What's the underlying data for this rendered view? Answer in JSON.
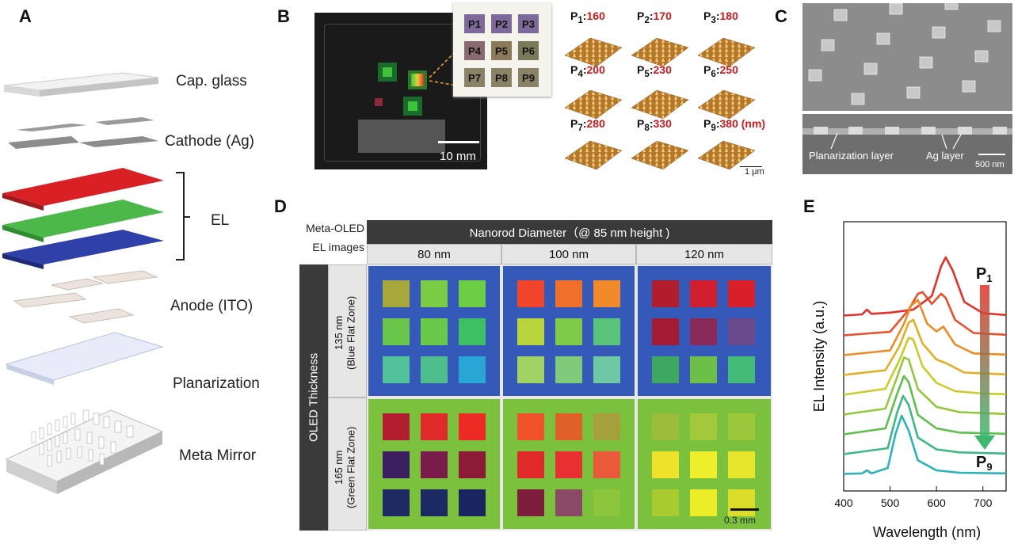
{
  "panel_labels": {
    "a": "A",
    "b": "B",
    "c": "C",
    "d": "D",
    "e": "E"
  },
  "panel_a": {
    "layers": [
      "Cap. glass",
      "Cathode (Ag)",
      "EL",
      "Anode (ITO)",
      "Planarization",
      "Meta Mirror"
    ]
  },
  "panel_b": {
    "scale_bar": "10 mm",
    "pixels": [
      "P1",
      "P2",
      "P3",
      "P4",
      "P5",
      "P6",
      "P7",
      "P8",
      "P9"
    ],
    "afm": [
      {
        "p": "P",
        "sub": "1",
        "val": "160"
      },
      {
        "p": "P",
        "sub": "2",
        "val": "170"
      },
      {
        "p": "P",
        "sub": "3",
        "val": "180"
      },
      {
        "p": "P",
        "sub": "4",
        "val": "200"
      },
      {
        "p": "P",
        "sub": "5",
        "val": "230"
      },
      {
        "p": "P",
        "sub": "6",
        "val": "250"
      },
      {
        "p": "P",
        "sub": "7",
        "val": "280"
      },
      {
        "p": "P",
        "sub": "8",
        "val": "330"
      },
      {
        "p": "P",
        "sub": "9",
        "val": "380 (nm)"
      }
    ],
    "afm_scale": "1 μm"
  },
  "panel_c": {
    "planarization": "Planarization layer",
    "ag": "Ag layer",
    "scale": "500 nm"
  },
  "panel_d": {
    "corner_top": "Meta-OLED",
    "corner_bottom": "EL images",
    "header": "Nanorod Diameter（@ 85 nm height )",
    "cols": [
      "80 nm",
      "100 nm",
      "120 nm"
    ],
    "side": "OLED  Thickness",
    "rows": [
      {
        "thick": "135 nm",
        "zone": "(Blue Flat Zone)"
      },
      {
        "thick": "165 nm",
        "zone": "(Green Flat Zone)"
      }
    ],
    "scale": "0.3 mm",
    "colors": {
      "blue_bg": "#3459b8",
      "green_bg": "#7cc13e",
      "grid": [
        [
          [
            "#a6a83c",
            "#7ccb45",
            "#6dcd45",
            "#6ac64a",
            "#69c948",
            "#3fbf63",
            "#52c29a",
            "#4fbe8d",
            "#2aa6d4"
          ],
          [
            "#f0452a",
            "#f0702a",
            "#f08a2a",
            "#b8d43c",
            "#7dcb46",
            "#58c47a",
            "#a0d264",
            "#7fcb7a",
            "#6fc8a4"
          ],
          [
            "#b01e2e",
            "#d21f30",
            "#d81f2a",
            "#a41c34",
            "#8a2a58",
            "#6a4a8a",
            "#3ea860",
            "#6cc048",
            "#44bc78"
          ]
        ],
        [
          [
            "#b21e30",
            "#e02a2a",
            "#ee2a24",
            "#3a1e60",
            "#7a1c4a",
            "#8c1c36",
            "#1e2a62",
            "#1c2a64",
            "#1a2660"
          ],
          [
            "#f0522a",
            "#e0602a",
            "#a6a03c",
            "#e02a2a",
            "#e83030",
            "#ea5a3a",
            "#7c1e3c",
            "#8a4a66",
            "#8cc63c"
          ],
          [
            "#9cbc3c",
            "#a2c83c",
            "#9cc83c",
            "#eee22a",
            "#eeee2c",
            "#e8e62c",
            "#a8cc30",
            "#ecec28",
            "#dcdc2a"
          ]
        ]
      ]
    }
  },
  "chart_data": {
    "type": "line",
    "xlabel": "Wavelength (nm)",
    "ylabel": "EL Intensity (a.u.)",
    "xlim": [
      400,
      750
    ],
    "xticks": [
      400,
      500,
      600,
      700
    ],
    "top_label": "P1",
    "bottom_label": "P9",
    "series": [
      {
        "color": "#e4312b",
        "peak": 620,
        "x": [
          400,
          440,
          450,
          460,
          500,
          550,
          590,
          610,
          620,
          635,
          660,
          700,
          750
        ],
        "y": [
          0.02,
          0.04,
          0.12,
          0.05,
          0.07,
          0.12,
          0.35,
          0.85,
          1.0,
          0.78,
          0.25,
          0.06,
          0.03
        ]
      },
      {
        "color": "#ea4e2b",
        "peak": 570,
        "x": [
          400,
          500,
          540,
          560,
          570,
          590,
          610,
          620,
          640,
          680,
          750
        ],
        "y": [
          0.02,
          0.08,
          0.45,
          0.72,
          0.75,
          0.55,
          0.72,
          0.65,
          0.28,
          0.06,
          0.03
        ]
      },
      {
        "color": "#ef8a24",
        "peak": 560,
        "x": [
          400,
          500,
          530,
          545,
          560,
          580,
          600,
          615,
          640,
          680,
          750
        ],
        "y": [
          0.02,
          0.1,
          0.55,
          0.85,
          0.95,
          0.55,
          0.42,
          0.5,
          0.2,
          0.05,
          0.03
        ]
      },
      {
        "color": "#e5ad22",
        "peak": 550,
        "x": [
          400,
          490,
          520,
          540,
          550,
          570,
          600,
          620,
          660,
          750
        ],
        "y": [
          0.02,
          0.1,
          0.5,
          0.9,
          0.95,
          0.55,
          0.28,
          0.22,
          0.06,
          0.03
        ]
      },
      {
        "color": "#c9cc2a",
        "peak": 545,
        "x": [
          400,
          490,
          520,
          540,
          550,
          570,
          600,
          640,
          700,
          750
        ],
        "y": [
          0.02,
          0.12,
          0.6,
          0.98,
          0.95,
          0.5,
          0.22,
          0.08,
          0.04,
          0.03
        ]
      },
      {
        "color": "#92c83a",
        "peak": 540,
        "x": [
          400,
          490,
          515,
          530,
          540,
          560,
          600,
          650,
          750
        ],
        "y": [
          0.02,
          0.12,
          0.65,
          0.98,
          0.95,
          0.45,
          0.15,
          0.06,
          0.03
        ]
      },
      {
        "color": "#5fbf4c",
        "peak": 535,
        "x": [
          400,
          490,
          515,
          530,
          540,
          560,
          600,
          650,
          750
        ],
        "y": [
          0.02,
          0.12,
          0.7,
          1.0,
          0.9,
          0.35,
          0.12,
          0.05,
          0.03
        ]
      },
      {
        "color": "#3eb884",
        "peak": 530,
        "x": [
          400,
          495,
          515,
          528,
          540,
          560,
          600,
          650,
          750
        ],
        "y": [
          0.02,
          0.12,
          0.72,
          1.0,
          0.85,
          0.3,
          0.1,
          0.05,
          0.03
        ]
      },
      {
        "color": "#2ab4b8",
        "peak": 525,
        "x": [
          400,
          440,
          450,
          460,
          495,
          512,
          525,
          540,
          560,
          600,
          650,
          750
        ],
        "y": [
          0.02,
          0.03,
          0.08,
          0.03,
          0.12,
          0.7,
          1.0,
          0.75,
          0.25,
          0.08,
          0.04,
          0.03
        ]
      }
    ]
  }
}
